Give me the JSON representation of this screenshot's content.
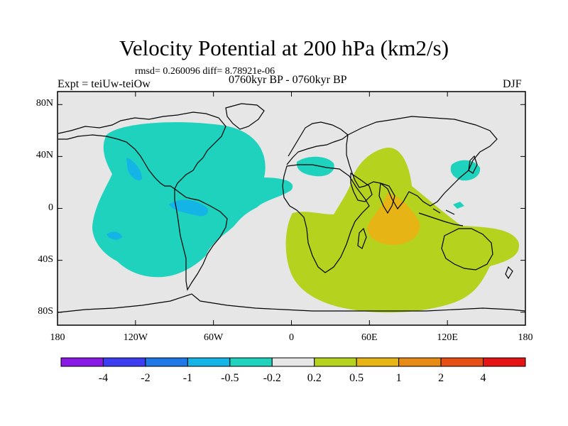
{
  "title": "Velocity Potential at 200 hPa (km2/s)",
  "stats": "rmsd= 0.260096 diff= 8.78921e-06",
  "experiment": "Expt = teiUw-teiOw",
  "period": "0760kyr BP - 0760kyr BP",
  "season": "DJF",
  "axes": {
    "lat_ticks": [
      {
        "label": "80N",
        "lat": 80
      },
      {
        "label": "40N",
        "lat": 40
      },
      {
        "label": "0",
        "lat": 0
      },
      {
        "label": "40S",
        "lat": -40
      },
      {
        "label": "80S",
        "lat": -80
      }
    ],
    "lon_ticks": [
      {
        "label": "180",
        "lon": -180
      },
      {
        "label": "120W",
        "lon": -120
      },
      {
        "label": "60W",
        "lon": -60
      },
      {
        "label": "0",
        "lon": 0
      },
      {
        "label": "60E",
        "lon": 60
      },
      {
        "label": "120E",
        "lon": 120
      },
      {
        "label": "180",
        "lon": 180
      }
    ]
  },
  "colorbar": {
    "colors": [
      "#8a1ae6",
      "#3c3cf0",
      "#1e78e6",
      "#14b4e6",
      "#1ed2be",
      "#e6e6e6",
      "#b4d21e",
      "#e6b414",
      "#e68c14",
      "#e65014",
      "#e61414"
    ],
    "labels": [
      "-4",
      "-2",
      "-1",
      "-0.5",
      "-0.2",
      "0.2",
      "0.5",
      "1",
      "2",
      "4"
    ]
  }
}
